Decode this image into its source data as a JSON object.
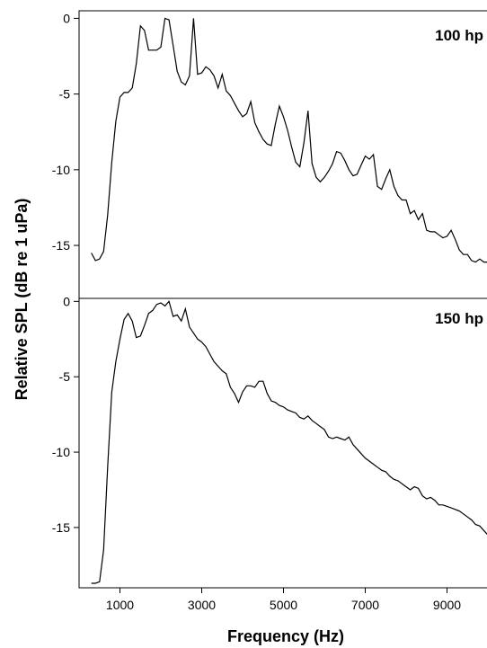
{
  "chart_data": {
    "type": "line",
    "xlabel": "Frequency (Hz)",
    "ylabel": "Relative SPL (dB re 1 uPa)",
    "xlim": [
      0,
      10000
    ],
    "x_ticks": [
      1000,
      3000,
      5000,
      7000,
      9000
    ],
    "panels": [
      {
        "label": "100 hp",
        "ylim": [
          -18.5,
          0.5
        ],
        "y_ticks": [
          0,
          -5,
          -10,
          -15
        ],
        "x": [
          300,
          400,
          500,
          600,
          700,
          800,
          900,
          1000,
          1100,
          1200,
          1300,
          1400,
          1500,
          1600,
          1700,
          1800,
          1900,
          2000,
          2100,
          2200,
          2300,
          2400,
          2500,
          2600,
          2700,
          2800,
          2900,
          3000,
          3100,
          3200,
          3300,
          3400,
          3500,
          3600,
          3700,
          3800,
          3900,
          4000,
          4100,
          4200,
          4300,
          4400,
          4500,
          4600,
          4700,
          4800,
          4900,
          5000,
          5100,
          5200,
          5300,
          5400,
          5500,
          5600,
          5700,
          5800,
          5900,
          6000,
          6100,
          6200,
          6300,
          6400,
          6500,
          6600,
          6700,
          6800,
          6900,
          7000,
          7100,
          7200,
          7300,
          7400,
          7500,
          7600,
          7700,
          7800,
          7900,
          8000,
          8100,
          8200,
          8300,
          8400,
          8500,
          8600,
          8700,
          8800,
          8900,
          9000,
          9100,
          9200,
          9300,
          9400,
          9500,
          9600,
          9700,
          9800,
          9900,
          10000
        ],
        "y": [
          -15.5,
          -16.0,
          -15.9,
          -15.4,
          -13.0,
          -9.5,
          -6.8,
          -5.2,
          -4.9,
          -4.9,
          -4.6,
          -3.0,
          -0.5,
          -0.8,
          -2.1,
          -2.1,
          -2.1,
          -1.9,
          0.0,
          -0.1,
          -1.8,
          -3.5,
          -4.2,
          -4.4,
          -3.8,
          0.0,
          -3.7,
          -3.6,
          -3.2,
          -3.4,
          -3.8,
          -4.6,
          -3.7,
          -4.8,
          -5.1,
          -5.6,
          -6.1,
          -6.5,
          -6.3,
          -5.5,
          -6.9,
          -7.5,
          -8.0,
          -8.3,
          -8.4,
          -7.0,
          -5.8,
          -6.5,
          -7.4,
          -8.5,
          -9.5,
          -9.8,
          -8.2,
          -6.1,
          -9.6,
          -10.5,
          -10.8,
          -10.5,
          -10.1,
          -9.6,
          -8.8,
          -8.9,
          -9.4,
          -10.0,
          -10.4,
          -10.3,
          -9.7,
          -9.1,
          -9.3,
          -9.0,
          -11.1,
          -11.3,
          -10.6,
          -10.0,
          -11.1,
          -11.7,
          -12.0,
          -12.0,
          -12.9,
          -12.7,
          -13.3,
          -12.9,
          -14.0,
          -14.1,
          -14.1,
          -14.3,
          -14.5,
          -14.4,
          -14.0,
          -14.6,
          -15.3,
          -15.6,
          -15.6,
          -16.0,
          -16.1,
          -15.9,
          -16.1,
          -16.1
        ]
      },
      {
        "label": "150 hp",
        "ylim": [
          -19.0,
          0.2
        ],
        "y_ticks": [
          0,
          -5,
          -10,
          -15
        ],
        "x": [
          300,
          400,
          500,
          600,
          700,
          800,
          900,
          1000,
          1100,
          1200,
          1300,
          1400,
          1500,
          1600,
          1700,
          1800,
          1900,
          2000,
          2100,
          2200,
          2300,
          2400,
          2500,
          2600,
          2700,
          2800,
          2900,
          3000,
          3100,
          3200,
          3300,
          3400,
          3500,
          3600,
          3700,
          3800,
          3900,
          4000,
          4100,
          4200,
          4300,
          4400,
          4500,
          4600,
          4700,
          4800,
          4900,
          5000,
          5100,
          5200,
          5300,
          5400,
          5500,
          5600,
          5700,
          5800,
          5900,
          6000,
          6100,
          6200,
          6300,
          6400,
          6500,
          6600,
          6700,
          6800,
          6900,
          7000,
          7100,
          7200,
          7300,
          7400,
          7500,
          7600,
          7700,
          7800,
          7900,
          8000,
          8100,
          8200,
          8300,
          8400,
          8500,
          8600,
          8700,
          8800,
          8900,
          9000,
          9100,
          9200,
          9300,
          9400,
          9500,
          9600,
          9700,
          9800,
          9900,
          10000
        ],
        "y": [
          -18.7,
          -18.7,
          -18.6,
          -16.5,
          -11.0,
          -6.0,
          -4.0,
          -2.5,
          -1.2,
          -0.8,
          -1.3,
          -2.4,
          -2.3,
          -1.6,
          -0.8,
          -0.6,
          -0.2,
          -0.1,
          -0.3,
          0.0,
          -1.0,
          -0.9,
          -1.3,
          -0.5,
          -1.7,
          -2.1,
          -2.5,
          -2.7,
          -3.0,
          -3.5,
          -4.0,
          -4.3,
          -4.6,
          -4.8,
          -5.7,
          -6.1,
          -6.7,
          -6.0,
          -5.6,
          -5.6,
          -5.7,
          -5.3,
          -5.3,
          -6.1,
          -6.6,
          -6.7,
          -6.9,
          -7.0,
          -7.2,
          -7.3,
          -7.4,
          -7.7,
          -7.8,
          -7.6,
          -7.9,
          -8.1,
          -8.3,
          -8.5,
          -9.0,
          -9.1,
          -9.0,
          -9.1,
          -9.2,
          -9.0,
          -9.5,
          -9.8,
          -10.1,
          -10.4,
          -10.6,
          -10.8,
          -11.0,
          -11.2,
          -11.3,
          -11.6,
          -11.8,
          -11.9,
          -12.1,
          -12.3,
          -12.5,
          -12.3,
          -12.4,
          -12.9,
          -13.1,
          -13.0,
          -13.2,
          -13.5,
          -13.5,
          -13.6,
          -13.7,
          -13.8,
          -13.9,
          -14.1,
          -14.3,
          -14.5,
          -14.8,
          -14.9,
          -15.2,
          -15.5
        ]
      }
    ]
  }
}
